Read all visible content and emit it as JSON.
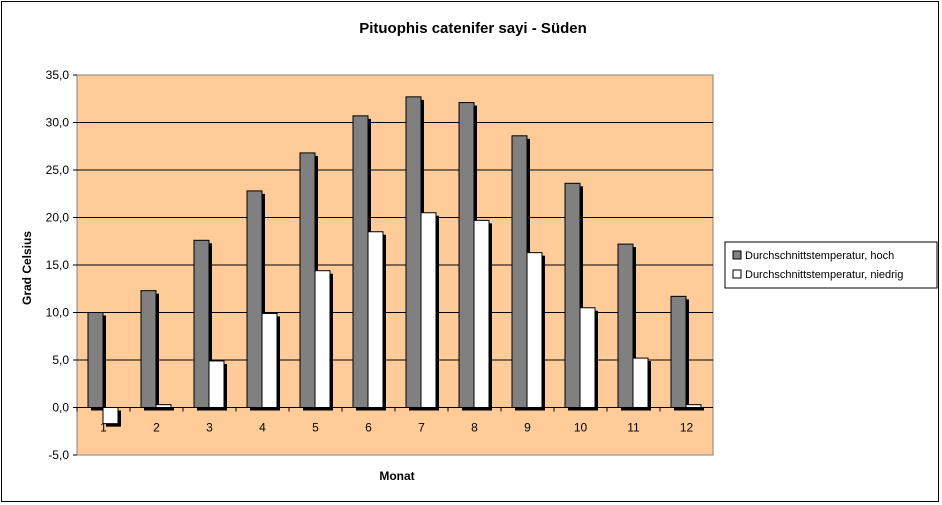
{
  "chart_data": {
    "type": "bar",
    "title": "Pituophis catenifer sayi - Süden",
    "xlabel": "Monat",
    "ylabel": "Grad Celsius",
    "categories": [
      "1",
      "2",
      "3",
      "4",
      "5",
      "6",
      "7",
      "8",
      "9",
      "10",
      "11",
      "12"
    ],
    "series": [
      {
        "name": "Durchschnittstemperatur, hoch",
        "color": "#808080",
        "values": [
          10.0,
          12.3,
          17.6,
          22.8,
          26.8,
          30.7,
          32.7,
          32.1,
          28.6,
          23.6,
          17.2,
          11.7
        ]
      },
      {
        "name": "Durchschnittstemperatur, niedrig",
        "color": "#ffffff",
        "values": [
          -1.7,
          0.3,
          4.9,
          9.9,
          14.4,
          18.5,
          20.5,
          19.7,
          16.3,
          10.5,
          5.2,
          0.3
        ]
      }
    ],
    "ylim": [
      -5,
      35
    ],
    "yticks": [
      "-5,0",
      "0,0",
      "5,0",
      "10,0",
      "15,0",
      "20,0",
      "25,0",
      "30,0",
      "35,0"
    ],
    "grid": true,
    "legend": "right",
    "plot_background": "#ffcc99"
  }
}
